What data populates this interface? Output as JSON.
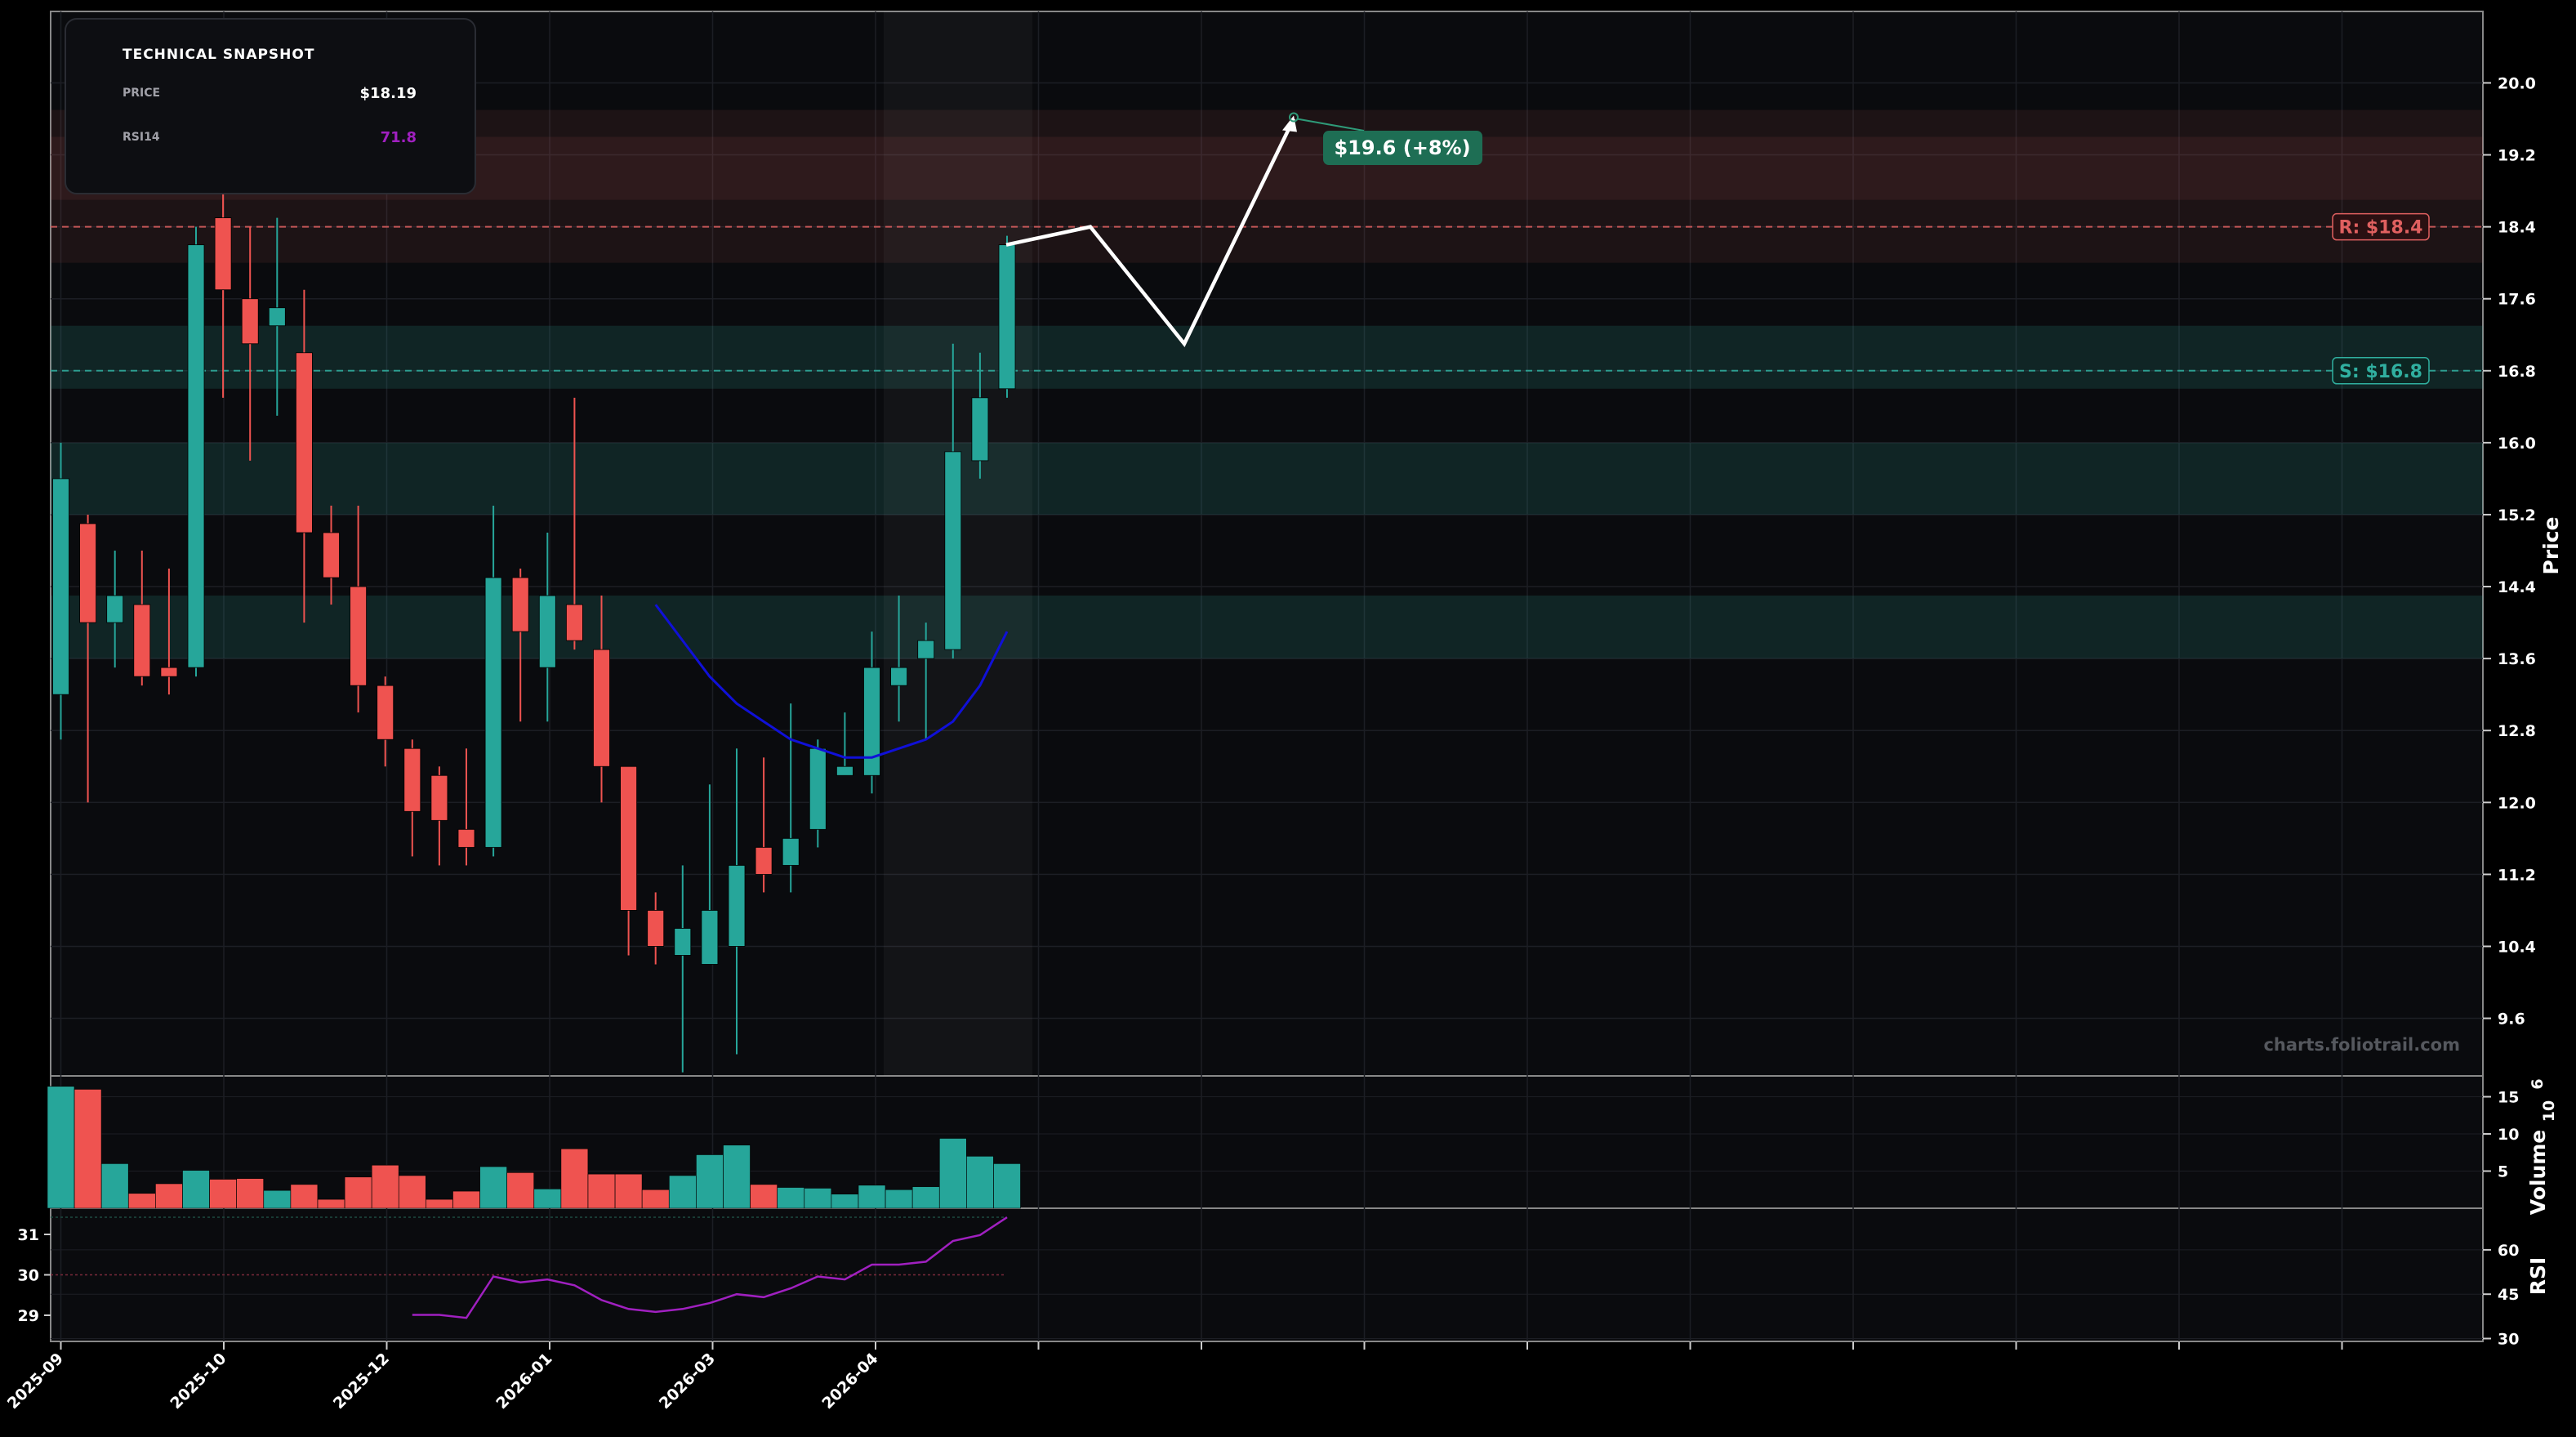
{
  "colors": {
    "background": "#0a0b0e",
    "up": "#26a69a",
    "down": "#ef5350",
    "sma": "#1010d8",
    "rsi": "#a020c0",
    "projection": "#ffffff",
    "resistance": "#e06060",
    "support": "#30b0a0",
    "target": "#1e6e54"
  },
  "snapshot": {
    "title": "TECHNICAL SNAPSHOT",
    "price_label": "PRICE",
    "price_value": "$18.19",
    "rsi_label": "RSI14",
    "rsi_value": "71.8"
  },
  "watermark": "charts.foliotrail.com",
  "levels": {
    "resistance": {
      "value": 18.4,
      "label": "R: $18.4"
    },
    "support": {
      "value": 16.8,
      "label": "S: $16.8"
    },
    "target": {
      "value": 19.6,
      "label": "$19.6 (+8%)"
    }
  },
  "chart_data": [
    {
      "type": "candlestick",
      "ylabel": "Price",
      "yticks": [
        9.6,
        10.4,
        11.2,
        12.0,
        12.8,
        13.6,
        14.4,
        15.2,
        16.0,
        16.8,
        17.6,
        18.4,
        19.2,
        20.0
      ],
      "ylim": [
        8.8,
        20.5
      ],
      "xticks": [
        "2025-09",
        "2025-10",
        "2025-12",
        "2026-01",
        "2026-03",
        "2026-04"
      ],
      "resistance_zones": [
        [
          18.0,
          19.7
        ],
        [
          18.7,
          19.4
        ]
      ],
      "support_zones": [
        [
          16.6,
          17.3
        ],
        [
          15.2,
          16.0
        ],
        [
          13.6,
          14.3
        ]
      ],
      "candles": [
        {
          "o": 13.2,
          "h": 16.0,
          "l": 12.7,
          "c": 15.6
        },
        {
          "o": 15.1,
          "h": 15.2,
          "l": 12.0,
          "c": 14.0
        },
        {
          "o": 14.0,
          "h": 14.8,
          "l": 13.5,
          "c": 14.3
        },
        {
          "o": 14.2,
          "h": 14.8,
          "l": 13.3,
          "c": 13.4
        },
        {
          "o": 13.5,
          "h": 14.6,
          "l": 13.2,
          "c": 13.4
        },
        {
          "o": 13.5,
          "h": 18.4,
          "l": 13.4,
          "c": 18.2
        },
        {
          "o": 18.5,
          "h": 18.8,
          "l": 16.5,
          "c": 17.7
        },
        {
          "o": 17.6,
          "h": 18.4,
          "l": 15.8,
          "c": 17.1
        },
        {
          "o": 17.3,
          "h": 18.5,
          "l": 16.3,
          "c": 17.5
        },
        {
          "o": 17.0,
          "h": 17.7,
          "l": 14.0,
          "c": 15.0
        },
        {
          "o": 15.0,
          "h": 15.3,
          "l": 14.2,
          "c": 14.5
        },
        {
          "o": 14.4,
          "h": 15.3,
          "l": 13.0,
          "c": 13.3
        },
        {
          "o": 13.3,
          "h": 13.4,
          "l": 12.4,
          "c": 12.7
        },
        {
          "o": 12.6,
          "h": 12.7,
          "l": 11.4,
          "c": 11.9
        },
        {
          "o": 12.3,
          "h": 12.4,
          "l": 11.3,
          "c": 11.8
        },
        {
          "o": 11.7,
          "h": 12.6,
          "l": 11.3,
          "c": 11.5
        },
        {
          "o": 11.5,
          "h": 15.3,
          "l": 11.4,
          "c": 14.5
        },
        {
          "o": 14.5,
          "h": 14.6,
          "l": 12.9,
          "c": 13.9
        },
        {
          "o": 13.5,
          "h": 15.0,
          "l": 12.9,
          "c": 14.3
        },
        {
          "o": 14.2,
          "h": 16.5,
          "l": 13.7,
          "c": 13.8
        },
        {
          "o": 13.7,
          "h": 14.3,
          "l": 12.0,
          "c": 12.4
        },
        {
          "o": 12.4,
          "h": 12.4,
          "l": 10.3,
          "c": 10.8
        },
        {
          "o": 10.8,
          "h": 11.0,
          "l": 10.2,
          "c": 10.4
        },
        {
          "o": 10.3,
          "h": 11.3,
          "l": 9.0,
          "c": 10.6
        },
        {
          "o": 10.2,
          "h": 12.2,
          "l": 10.2,
          "c": 10.8
        },
        {
          "o": 10.4,
          "h": 12.6,
          "l": 9.2,
          "c": 11.3
        },
        {
          "o": 11.5,
          "h": 12.5,
          "l": 11.0,
          "c": 11.2
        },
        {
          "o": 11.3,
          "h": 13.1,
          "l": 11.0,
          "c": 11.6
        },
        {
          "o": 11.7,
          "h": 12.7,
          "l": 11.5,
          "c": 12.6
        },
        {
          "o": 12.3,
          "h": 13.0,
          "l": 12.3,
          "c": 12.4
        },
        {
          "o": 12.3,
          "h": 13.9,
          "l": 12.1,
          "c": 13.5
        },
        {
          "o": 13.3,
          "h": 14.3,
          "l": 12.9,
          "c": 13.5
        },
        {
          "o": 13.6,
          "h": 14.0,
          "l": 12.7,
          "c": 13.8
        },
        {
          "o": 13.7,
          "h": 17.1,
          "l": 13.6,
          "c": 15.9
        },
        {
          "o": 15.8,
          "h": 17.0,
          "l": 15.6,
          "c": 16.5
        },
        {
          "o": 16.6,
          "h": 18.3,
          "l": 16.5,
          "c": 18.2
        }
      ],
      "sma": [
        14.2,
        13.8,
        13.4,
        13.1,
        12.9,
        12.7,
        12.6,
        12.5,
        12.5,
        12.6,
        12.7,
        12.9,
        13.3,
        13.9
      ],
      "projection": [
        18.2,
        18.4,
        17.1,
        19.6
      ]
    },
    {
      "type": "bar",
      "ylabel": "Volume",
      "yunit": "1e6",
      "yticks": [
        5,
        10,
        15
      ],
      "ylim": [
        0,
        18
      ],
      "values": [
        16.4,
        16.0,
        6.0,
        2.0,
        3.3,
        5.1,
        3.9,
        4.0,
        2.4,
        3.2,
        1.2,
        4.2,
        5.8,
        4.4,
        1.2,
        2.3,
        5.6,
        4.8,
        2.6,
        8.0,
        4.6,
        4.6,
        2.5,
        4.4,
        7.2,
        8.5,
        3.2,
        2.8,
        2.7,
        1.9,
        3.1,
        2.5,
        2.9,
        9.4,
        7.0,
        6.0
      ]
    },
    {
      "type": "line",
      "ylabel": "RSI",
      "yticks_right": [
        30,
        45,
        60
      ],
      "yticks_left": [
        29,
        30,
        31
      ],
      "ylim": [
        30,
        73
      ],
      "values": [
        38,
        38,
        37,
        51,
        49,
        50,
        48,
        43,
        40,
        39,
        40,
        42,
        45,
        44,
        47,
        51,
        50,
        55,
        55,
        56,
        63,
        65,
        71
      ]
    }
  ]
}
